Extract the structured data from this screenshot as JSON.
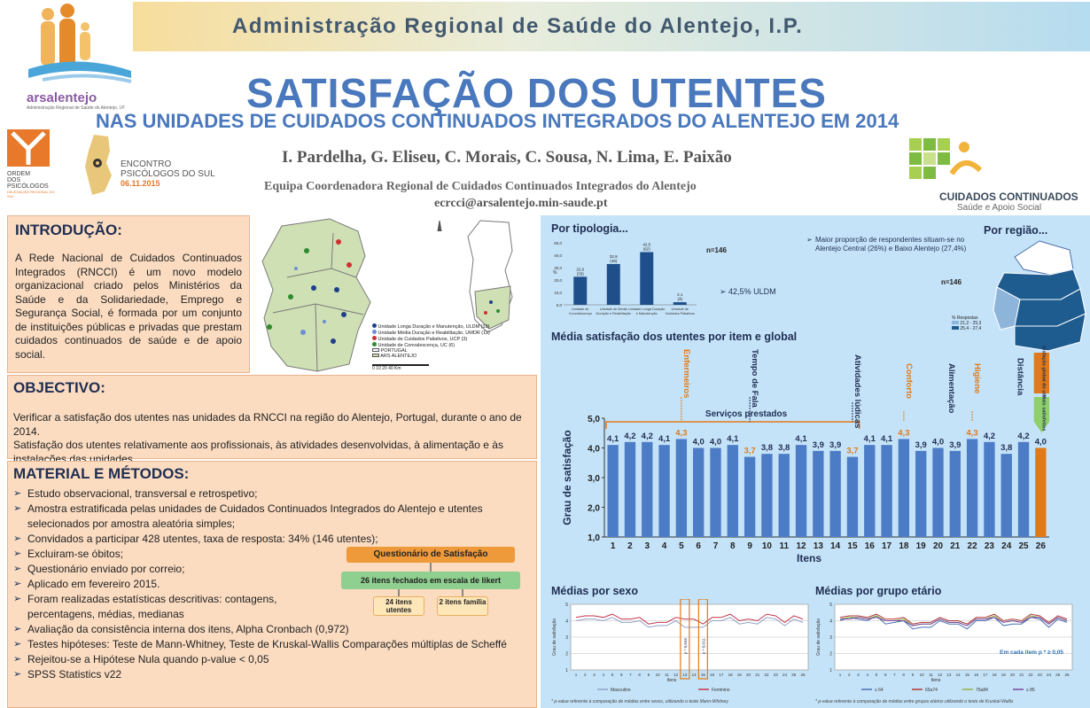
{
  "header": {
    "banner_title": "Administração Regional de Saúde do Alentejo, I.P.",
    "title": "SATISFAÇÃO DOS UTENTES",
    "subtitle": "NAS UNIDADES DE CUIDADOS CONTINUADOS INTEGRADOS DO ALENTEJO EM 2014",
    "authors": "I. Pardelha, G. Eliseu, C. Morais, C. Sousa, N. Lima, E. Paixão",
    "team": "Equipa Coordenadora Regional de Cuidados Continuados Integrados do Alentejo",
    "email": "ecrcci@arsalentejo.min-saude.pt"
  },
  "logos": {
    "ars": "arsalentejo",
    "ars_sub": "Administração Regional de Saúde do Alentejo, I.P.",
    "ordem_1": "ORDEM",
    "ordem_2": "DOS",
    "ordem_3": "PSICÓLOGOS",
    "ordem_4": "DELEGAÇÃO REGIONAL DO SUL",
    "encontro_1": "ENCONTRO",
    "encontro_2": "PSICÓLOGOS DO SUL",
    "encontro_date": "06.11.2015",
    "cc_1": "CUIDADOS CONTINUADOS",
    "cc_2": "Saúde e Apoio Social"
  },
  "intro": {
    "title": "INTRODUÇÃO:",
    "text": "A Rede Nacional de Cuidados Continuados Integrados (RNCCI) é um novo modelo organizacional criado pelos Ministérios da Saúde e da Solidariedade, Emprego e Segurança Social, é formada por um conjunto de instituições públicas e privadas que prestam cuidados continuados de saúde e de apoio social."
  },
  "map_legend": [
    {
      "label": "Unidade Longa Duração e Manutenção, ULDM (19)",
      "color": "#1f3f8a"
    },
    {
      "label": "Unidade Média Duração e Reabilitação, UMDR (11)",
      "color": "#6a8fd6"
    },
    {
      "label": "Unidade de Cuidados Paliativos, UCP (3)",
      "color": "#d23030"
    },
    {
      "label": "Unidade de Convalescença, UC (6)",
      "color": "#2e8b2e"
    },
    {
      "label": "PORTUGAL",
      "color": "#ffffff"
    },
    {
      "label": "ARS ALENTEJO",
      "color": "#cfe0b4"
    }
  ],
  "map_scale": "0   10   20         40 Km",
  "objective": {
    "title": "OBJECTIVO:",
    "text1": "Verificar a satisfação dos utentes nas unidades da RNCCI na região do Alentejo, Portugal, durante o ano de 2014.",
    "text2": "Satisfação dos utentes relativamente aos profissionais, às atividades desenvolvidas, à alimentação e às instalações das unidades."
  },
  "methods": {
    "title": "MATERIAL E MÉTODOS:",
    "items": [
      "Estudo observacional, transversal e retrospetivo;",
      "Amostra estratificada pelas unidades de Cuidados Continuados Integrados do Alentejo e utentes selecionados por amostra aleatória simples;",
      "Convidados a participar 428 utentes, taxa de resposta: 34% (146 utentes);",
      "Excluiram-se  óbitos;",
      "Questionário enviado por correio;",
      "Aplicado em fevereiro 2015.",
      "Foram realizadas estatísticas descritivas: contagens, percentagens, médias, medianas",
      "Avaliação da consistência interna dos itens, Alpha Cronbach (0,972)",
      "Testes hipóteses: Teste de Mann-Whitney, Teste de Kruskal-Wallis Comparações múltiplas de Scheffé",
      "Rejeitou-se a Hipótese Nula quando p-value < 0,05",
      "SPSS Statistics v22"
    ],
    "questionnaire": {
      "title": "Questionário de Satisfação",
      "closed": "26 itens fechados em escala de likert",
      "users": "24 itens utentes",
      "family": "2 itens família"
    }
  },
  "typology": {
    "heading": "Por tipologia...",
    "n": "n=146",
    "note": "42,5% ULDM",
    "ylabel": "%"
  },
  "region": {
    "heading": "Por região...",
    "note": "Maior proporção de respondentes situam-se no Alentejo Central (26%) e Baixo Alentejo (27,4%)",
    "n": "n=146",
    "legend_title": "% Respostas",
    "legend": [
      "21,2 - 25,3",
      "25,4 - 27,4"
    ]
  },
  "main_chart": {
    "heading": "Média satisfação dos utentes por item e global",
    "ylabel": "Grau de satisfação",
    "xlabel": "Itens",
    "group_label": "Serviços prestados",
    "category_labels": [
      {
        "text": "Enfermeiros",
        "color": "#e07a18"
      },
      {
        "text": "Tempo de Fala",
        "color": "#1f2e52"
      },
      {
        "text": "Atividades lúdicas",
        "color": "#1f2e52"
      },
      {
        "text": "Conforto",
        "color": "#e07a18"
      },
      {
        "text": "Alimentação",
        "color": "#1f2e52"
      },
      {
        "text": "Higiene",
        "color": "#e07a18"
      },
      {
        "text": "Distância",
        "color": "#1f2e52"
      }
    ],
    "global_label": "Satisfação global do utente",
    "mais_label": "Mais satisfeitos"
  },
  "sex_chart": {
    "heading": "Médias por sexo",
    "ylabel": "Grau de satisfação",
    "xlabel": "Itens",
    "pvals": [
      "p * 0,046",
      "p * 0,011"
    ],
    "legend": [
      "Masculino",
      "Feminino"
    ],
    "footnote": "* p-value referente à comparação de médias entre sexos, utilizando o teste Mann-Whitney"
  },
  "age_chart": {
    "heading": "Médias por grupo etário",
    "ylabel": "Grau de satisfação",
    "xlabel": "Itens",
    "note": "Em cada item p * ≥ 0,05",
    "legend": [
      "≤ 64",
      "65a74",
      "75a84",
      "≥ 85"
    ],
    "footnote": "* p-value referente à comparação de médias entre grupos etários utilizando o teste de Kruskal-Wallis"
  },
  "colors": {
    "bar": "#4d7cc7",
    "bar_highlight": "#e07a18",
    "global_bar": "#e07a18",
    "panel_left": "#fbdcc1",
    "panel_right": "#c5e3f8",
    "title_blue": "#4a78bd"
  },
  "chart_data": [
    {
      "type": "bar",
      "title": "Por tipologia...",
      "categories": [
        "Unidade de Convalescença",
        "Unidade de Média Duração e Reabilitação",
        "Unidade Longa Duração e Manutenção",
        "Unidade de Cuidados Paliativos"
      ],
      "values": [
        22.6,
        32.9,
        42.5,
        2.1
      ],
      "data_labels": [
        "22,6 (33)",
        "32,9 (48)",
        "42,5 (62)",
        "2,1 (3)"
      ],
      "ylabel": "%",
      "ylim": [
        0,
        50
      ],
      "yticks": [
        "0,0",
        "10,0",
        "20,0",
        "30,0",
        "40,0",
        "50,0"
      ]
    },
    {
      "type": "bar",
      "title": "Média satisfação dos utentes por item e global",
      "categories": [
        "1",
        "2",
        "3",
        "4",
        "5",
        "6",
        "7",
        "8",
        "9",
        "10",
        "11",
        "12",
        "13",
        "14",
        "15",
        "16",
        "17",
        "18",
        "19",
        "20",
        "21",
        "22",
        "23",
        "24",
        "25",
        "26"
      ],
      "values": [
        4.1,
        4.2,
        4.2,
        4.1,
        4.3,
        4.0,
        4.0,
        4.1,
        3.7,
        3.8,
        3.8,
        4.1,
        3.9,
        3.9,
        3.7,
        4.1,
        4.1,
        4.3,
        3.9,
        4.0,
        3.9,
        4.3,
        4.2,
        3.8,
        4.2,
        4.0
      ],
      "data_labels": [
        "4,1",
        "4,2",
        "4,2",
        "4,1",
        "4,3",
        "4,0",
        "4,0",
        "4,1",
        "3,7",
        "3,8",
        "3,8",
        "4,1",
        "3,9",
        "3,9",
        "3,7",
        "4,1",
        "4,1",
        "4,3",
        "3,9",
        "4,0",
        "3,9",
        "4,3",
        "4,2",
        "3,8",
        "4,2",
        "4,0"
      ],
      "highlight_labels": [
        5,
        9,
        15,
        18,
        22
      ],
      "xlabel": "Itens",
      "ylabel": "Grau de satisfação",
      "ylim": [
        1,
        5
      ],
      "yticks": [
        "1,0",
        "2,0",
        "3,0",
        "4,0",
        "5,0"
      ]
    },
    {
      "type": "line",
      "title": "Médias por sexo",
      "x": [
        1,
        2,
        3,
        4,
        5,
        6,
        7,
        8,
        9,
        10,
        11,
        12,
        13,
        14,
        15,
        16,
        17,
        18,
        19,
        20,
        21,
        22,
        23,
        24,
        25,
        26
      ],
      "series": [
        {
          "name": "Masculino",
          "color": "#8fa2c9",
          "values": [
            4.0,
            4.1,
            4.1,
            4.0,
            4.2,
            3.9,
            3.9,
            4.0,
            3.6,
            3.7,
            3.7,
            4.0,
            3.6,
            3.6,
            3.6,
            4.0,
            4.0,
            4.2,
            3.8,
            3.9,
            3.8,
            4.2,
            4.1,
            3.7,
            4.1,
            3.9
          ]
        },
        {
          "name": "Feminino",
          "color": "#c2364f",
          "values": [
            4.2,
            4.3,
            4.3,
            4.2,
            4.4,
            4.1,
            4.1,
            4.2,
            3.8,
            3.9,
            3.9,
            4.2,
            4.1,
            4.1,
            3.8,
            4.2,
            4.2,
            4.4,
            4.0,
            4.1,
            4.0,
            4.4,
            4.3,
            3.9,
            4.3,
            4.1
          ]
        }
      ],
      "ylabel": "Grau de satisfação",
      "xlabel": "Itens",
      "ylim": [
        1,
        5
      ]
    },
    {
      "type": "line",
      "title": "Médias por grupo etário",
      "x": [
        1,
        2,
        3,
        4,
        5,
        6,
        7,
        8,
        9,
        10,
        11,
        12,
        13,
        14,
        15,
        16,
        17,
        18,
        19,
        20,
        21,
        22,
        23,
        24,
        25,
        26
      ],
      "series": [
        {
          "name": "≤ 64",
          "color": "#4a6fb5",
          "values": [
            4.0,
            4.2,
            4.1,
            4.0,
            4.3,
            3.8,
            3.9,
            4.0,
            3.5,
            3.6,
            3.6,
            4.0,
            3.8,
            3.8,
            3.5,
            4.0,
            4.0,
            4.2,
            3.7,
            3.8,
            3.8,
            4.2,
            4.1,
            3.6,
            4.1,
            3.9
          ]
        },
        {
          "name": "65a74",
          "color": "#b03a3a",
          "values": [
            4.2,
            4.3,
            4.3,
            4.2,
            4.4,
            4.1,
            4.1,
            4.2,
            3.8,
            3.9,
            3.9,
            4.2,
            4.0,
            4.0,
            3.8,
            4.2,
            4.2,
            4.4,
            4.0,
            4.1,
            4.0,
            4.4,
            4.3,
            3.9,
            4.3,
            4.1
          ]
        },
        {
          "name": "75a84",
          "color": "#8db04a",
          "values": [
            4.1,
            4.2,
            4.2,
            4.1,
            4.3,
            4.0,
            4.0,
            4.1,
            3.7,
            3.8,
            3.8,
            4.1,
            3.9,
            3.9,
            3.7,
            4.1,
            4.1,
            4.3,
            3.9,
            4.0,
            3.9,
            4.3,
            4.2,
            3.8,
            4.2,
            4.0
          ]
        },
        {
          "name": "≥ 85",
          "color": "#7a4aa0",
          "values": [
            4.1,
            4.1,
            4.2,
            4.1,
            4.2,
            4.0,
            4.0,
            4.0,
            3.7,
            3.8,
            3.8,
            4.1,
            3.9,
            3.9,
            3.7,
            4.1,
            4.1,
            4.2,
            3.9,
            4.0,
            3.9,
            4.2,
            4.2,
            3.8,
            4.2,
            4.0
          ]
        }
      ],
      "ylabel": "Grau de satisfação",
      "xlabel": "Itens",
      "ylim": [
        1,
        5
      ]
    }
  ]
}
